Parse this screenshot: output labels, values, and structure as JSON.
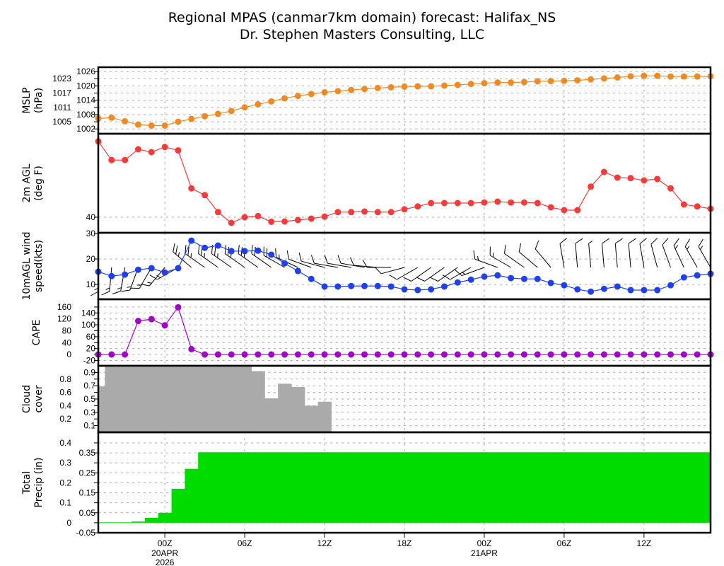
{
  "title": {
    "line1": "Regional MPAS (canmar7km domain) forecast: Halifax_NS",
    "line2": "Dr. Stephen Masters Consulting, LLC"
  },
  "x_axis": {
    "ticks": [
      {
        "label": "00Z",
        "sub": "20APR",
        "sub2": "2026",
        "time": "2026-04-20T00Z"
      },
      {
        "label": "06Z",
        "time": "2026-04-20T06Z"
      },
      {
        "label": "12Z",
        "time": "2026-04-20T12Z"
      },
      {
        "label": "18Z",
        "time": "2026-04-20T18Z"
      },
      {
        "label": "00Z",
        "sub": "21APR",
        "time": "2026-04-21T00Z"
      },
      {
        "label": "06Z",
        "time": "2026-04-21T06Z"
      },
      {
        "label": "12Z",
        "time": "2026-04-21T12Z"
      }
    ]
  },
  "chart_data": {
    "type": "line",
    "x": [
      "2026-04-19T19Z",
      "2026-04-19T20Z",
      "2026-04-19T21Z",
      "2026-04-19T22Z",
      "2026-04-19T23Z",
      "2026-04-20T00Z",
      "2026-04-20T01Z",
      "2026-04-20T02Z",
      "2026-04-20T03Z",
      "2026-04-20T04Z",
      "2026-04-20T05Z",
      "2026-04-20T06Z",
      "2026-04-20T07Z",
      "2026-04-20T08Z",
      "2026-04-20T09Z",
      "2026-04-20T10Z",
      "2026-04-20T11Z",
      "2026-04-20T12Z",
      "2026-04-20T13Z",
      "2026-04-20T14Z",
      "2026-04-20T15Z",
      "2026-04-20T16Z",
      "2026-04-20T17Z",
      "2026-04-20T18Z",
      "2026-04-20T19Z",
      "2026-04-20T20Z",
      "2026-04-20T21Z",
      "2026-04-20T22Z",
      "2026-04-20T23Z",
      "2026-04-21T00Z",
      "2026-04-21T01Z",
      "2026-04-21T02Z",
      "2026-04-21T03Z",
      "2026-04-21T04Z",
      "2026-04-21T05Z",
      "2026-04-21T06Z",
      "2026-04-21T07Z",
      "2026-04-21T08Z",
      "2026-04-21T09Z",
      "2026-04-21T10Z",
      "2026-04-21T11Z",
      "2026-04-21T12Z",
      "2026-04-21T13Z",
      "2026-04-21T14Z",
      "2026-04-21T15Z",
      "2026-04-21T16Z",
      "2026-04-21T17Z"
    ],
    "grid": true,
    "panels": [
      {
        "id": "mslp",
        "type": "line",
        "ylabel": [
          "MSLP",
          "(hPa)"
        ],
        "color": "#f08a24",
        "ylim": [
          1000,
          1027.8
        ],
        "yticks": [
          1002,
          1005,
          1008,
          1011,
          1014,
          1017,
          1020,
          1023,
          1026
        ],
        "values": [
          1006.4,
          1006.7,
          1005.2,
          1003.8,
          1003.4,
          1003.4,
          1005.0,
          1006.2,
          1007.3,
          1008.3,
          1009.5,
          1011.0,
          1012.3,
          1013.5,
          1014.8,
          1015.8,
          1016.6,
          1017.3,
          1017.8,
          1018.3,
          1018.7,
          1019.1,
          1019.4,
          1019.7,
          1019.8,
          1019.8,
          1020.1,
          1020.4,
          1020.8,
          1021.1,
          1021.4,
          1021.4,
          1021.6,
          1021.9,
          1022.0,
          1022.1,
          1022.3,
          1022.7,
          1023.1,
          1023.5,
          1024.0,
          1024.2,
          1024.2,
          1023.9,
          1023.9,
          1023.9,
          1024.0
        ]
      },
      {
        "id": "temp",
        "type": "line",
        "ylabel": [
          "2m AGL",
          "(deg F)"
        ],
        "color": "#f83a3a",
        "ylim": [
          37.25,
          54.75
        ],
        "yticks": [
          40
        ],
        "values": [
          53.4,
          50.1,
          50.1,
          52.0,
          51.5,
          52.4,
          51.8,
          45.1,
          43.9,
          40.9,
          39.0,
          40.0,
          40.2,
          39.2,
          39.25,
          39.5,
          39.75,
          40.1,
          40.9,
          40.9,
          41.0,
          40.9,
          40.9,
          41.4,
          41.9,
          42.5,
          42.5,
          42.5,
          42.5,
          42.6,
          42.75,
          42.6,
          42.6,
          42.5,
          41.75,
          41.25,
          41.25,
          45.4,
          48.0,
          47.0,
          46.9,
          46.5,
          46.75,
          45.1,
          42.25,
          41.9,
          41.5
        ]
      },
      {
        "id": "wind",
        "type": "line",
        "ylabel": [
          "10mAGL wind",
          "speed(kts)"
        ],
        "color": "#2040f0",
        "ylim": [
          4.2,
          30.3
        ],
        "yticks": [
          10,
          20,
          30
        ],
        "values": [
          15.0,
          13.3,
          13.9,
          15.8,
          16.4,
          14.7,
          16.4,
          27.2,
          24.4,
          25.3,
          23.1,
          23.1,
          23.3,
          21.7,
          18.3,
          15.3,
          12.2,
          9.2,
          9.2,
          9.4,
          9.4,
          9.4,
          9.2,
          8.1,
          7.8,
          8.1,
          9.2,
          10.8,
          11.9,
          13.1,
          13.6,
          12.5,
          12.2,
          12.2,
          10.6,
          9.7,
          8.1,
          7.2,
          8.3,
          9.2,
          7.8,
          7.8,
          7.8,
          9.7,
          12.8,
          13.6,
          14.2
        ],
        "direction_deg": [
          180,
          185,
          190,
          200,
          210,
          220,
          240,
          310,
          305,
          305,
          305,
          305,
          305,
          305,
          300,
          295,
          290,
          285,
          280,
          280,
          280,
          275,
          270,
          255,
          240,
          235,
          235,
          235,
          240,
          250,
          290,
          300,
          305,
          310,
          320,
          350,
          355,
          355,
          355,
          355,
          355,
          350,
          345,
          340,
          335,
          330,
          330
        ]
      },
      {
        "id": "cape",
        "type": "line",
        "ylabel": [
          "CAPE"
        ],
        "color": "#a000c8",
        "ylim": [
          -38,
          186
        ],
        "yticks": [
          -20,
          0,
          20,
          40,
          60,
          80,
          100,
          120,
          140,
          160
        ],
        "values": [
          0,
          0,
          0,
          113,
          119,
          98,
          159,
          18,
          0,
          0,
          0,
          0,
          0,
          0,
          0,
          0,
          0,
          0,
          0,
          0,
          0,
          0,
          0,
          0,
          0,
          0,
          0,
          0,
          0,
          0,
          0,
          0,
          0,
          0,
          0,
          0,
          0,
          0,
          0,
          0,
          0,
          0,
          0,
          0,
          0,
          0,
          0
        ]
      },
      {
        "id": "cloud",
        "type": "bar",
        "ylabel": [
          "Cloud",
          "cover"
        ],
        "color": "#aaaaaa",
        "ylim": [
          0,
          1
        ],
        "yticks": [
          0.1,
          0.2,
          0.3,
          0.4,
          0.5,
          0.6,
          0.7,
          0.8,
          0.9
        ],
        "values": [
          0.69,
          1,
          1,
          1,
          1,
          1,
          1,
          1,
          1,
          1,
          1,
          1,
          0.92,
          0.51,
          0.73,
          0.68,
          0.4,
          0.46,
          0,
          0,
          0,
          0,
          0,
          0,
          0,
          0,
          0,
          0,
          0,
          0,
          0,
          0,
          0,
          0,
          0,
          0,
          0,
          0,
          0,
          0,
          0,
          0,
          0,
          0,
          0,
          0,
          0
        ]
      },
      {
        "id": "precip",
        "type": "bar",
        "ylabel": [
          "Total",
          "Precip (in)"
        ],
        "color": "#00dc00",
        "ylim": [
          -0.05,
          0.453
        ],
        "yticks": [
          -0.05,
          0,
          0.05,
          0.1,
          0.15,
          0.2,
          0.25,
          0.3,
          0.35,
          0.4
        ],
        "values": [
          0.002,
          0.002,
          0.002,
          0.006,
          0.025,
          0.05,
          0.17,
          0.27,
          0.353,
          0.353,
          0.353,
          0.353,
          0.353,
          0.353,
          0.353,
          0.353,
          0.353,
          0.353,
          0.353,
          0.353,
          0.353,
          0.353,
          0.353,
          0.353,
          0.353,
          0.353,
          0.353,
          0.353,
          0.353,
          0.353,
          0.353,
          0.353,
          0.353,
          0.353,
          0.353,
          0.353,
          0.353,
          0.353,
          0.353,
          0.353,
          0.353,
          0.353,
          0.353,
          0.353,
          0.353,
          0.353,
          0.353
        ]
      }
    ]
  }
}
